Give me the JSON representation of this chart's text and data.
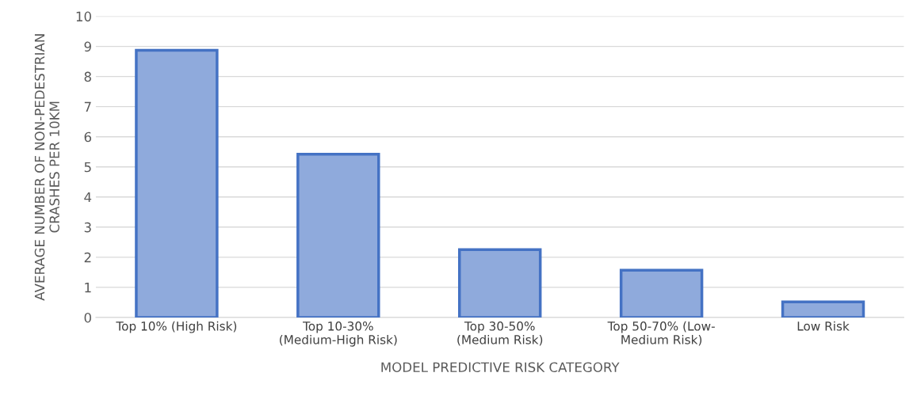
{
  "chart_data": {
    "type": "bar",
    "xlabel": "MODEL PREDICTIVE RISK CATEGORY",
    "ylabel": "AVERAGE NUMBER OF NON-PEDESTRIAN\nCRASHES PER 10KM",
    "categories": [
      "Top 10% (High Risk)",
      "Top 10-30%\n(Medium-High Risk)",
      "Top 30-50%\n(Medium Risk)",
      "Top 50-70% (Low-\nMedium Risk)",
      "Low Risk"
    ],
    "series": [
      {
        "color": "#8faadc",
        "values": [
          8.87,
          5.42,
          2.25,
          1.57,
          0.52
        ]
      }
    ],
    "ylim": [
      0,
      10
    ],
    "yticks": [
      0,
      1,
      2,
      3,
      4,
      5,
      6,
      7,
      8,
      9,
      10
    ],
    "grid": "y",
    "legend": false
  }
}
